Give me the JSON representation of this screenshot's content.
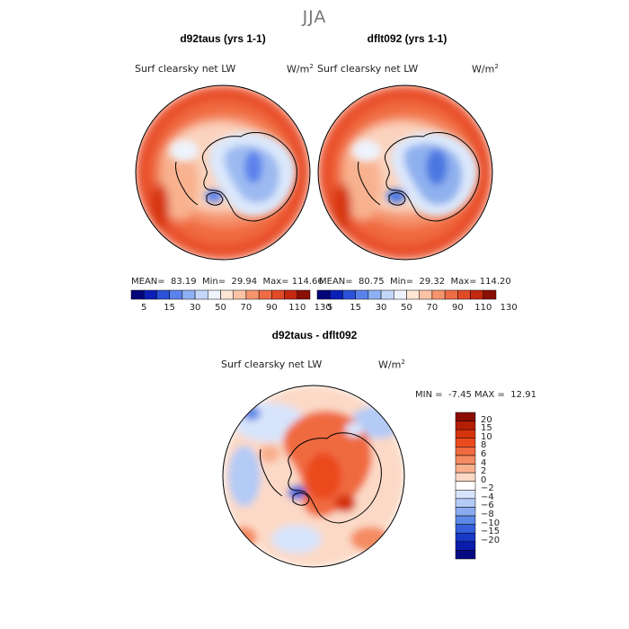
{
  "page": {
    "season": "JJA"
  },
  "colors": {
    "ocean_outer": "#e8502c",
    "ocean_mid": "#f27d52",
    "coast_light": "#fbd3bd",
    "ice_pale": "#dbe8fb",
    "ice_blue": "#8fb0ef",
    "ice_deep": "#4b78e0",
    "coastline": "#000000"
  },
  "chart_data": [
    {
      "type": "heatmap",
      "title": "d92taus (yrs 1-1)",
      "variable": "Surf clearsky net LW",
      "units": "W/m",
      "units_sup": "2",
      "stats": {
        "mean_label": "MEAN=",
        "mean": "83.19",
        "min_label": "Min=",
        "min": "29.94",
        "max_label": "Max=",
        "max": "114.66"
      },
      "colorbar_ticks": [
        "5",
        "15",
        "30",
        "50",
        "70",
        "90",
        "110",
        "130"
      ],
      "colorbar_colors": [
        "#04047a",
        "#0b1fb8",
        "#2b52d8",
        "#5b82ec",
        "#8eb0f4",
        "#c4d6f9",
        "#eef3fd",
        "#fde6d6",
        "#fbc3a4",
        "#f6956d",
        "#ee6d47",
        "#e24a28",
        "#c3290f",
        "#8a0f05"
      ]
    },
    {
      "type": "heatmap",
      "title": "dflt092 (yrs 1-1)",
      "variable": "Surf clearsky net LW",
      "units": "W/m",
      "units_sup": "2",
      "stats": {
        "mean_label": "MEAN=",
        "mean": "80.75",
        "min_label": "Min=",
        "min": "29.32",
        "max_label": "Max=",
        "max": "114.20"
      },
      "colorbar_ticks": [
        "5",
        "15",
        "30",
        "50",
        "70",
        "90",
        "110",
        "130"
      ],
      "colorbar_colors": [
        "#04047a",
        "#0b1fb8",
        "#2b52d8",
        "#5b82ec",
        "#8eb0f4",
        "#c4d6f9",
        "#eef3fd",
        "#fde6d6",
        "#fbc3a4",
        "#f6956d",
        "#ee6d47",
        "#e24a28",
        "#c3290f",
        "#8a0f05"
      ]
    },
    {
      "type": "heatmap",
      "title": "d92taus - dflt092",
      "variable": "Surf clearsky net LW",
      "units": "W/m",
      "units_sup": "2",
      "stats": {
        "min_label": "MIN =",
        "min": "-7.45",
        "max_label": "MAX =",
        "max": "12.91"
      },
      "colorbar_ticks": [
        "20",
        "15",
        "10",
        "8",
        "6",
        "4",
        "2",
        "0",
        "−2",
        "−4",
        "−6",
        "−8",
        "−10",
        "−15",
        "−20"
      ],
      "colorbar_colors": [
        "#8c0d00",
        "#b51e05",
        "#d6340d",
        "#ea4a1e",
        "#f06a3f",
        "#f48b62",
        "#f8b08e",
        "#fcd9c6",
        "#ffffff",
        "#d8e4fb",
        "#b4cbf6",
        "#8aacef",
        "#5e88e6",
        "#355fdb",
        "#1838c7",
        "#0a1cac",
        "#060a82"
      ]
    }
  ]
}
